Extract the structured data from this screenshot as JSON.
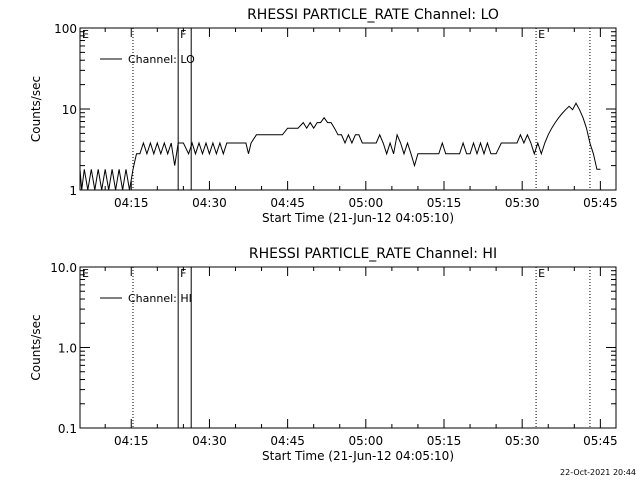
{
  "footer": {
    "timestamp": "22-Oct-2021 20:44"
  },
  "chart_data": [
    {
      "type": "line",
      "title": "RHESSI PARTICLE_RATE Channel: LO",
      "xlabel": "Start Time (21-Jun-12 04:05:10)",
      "ylabel": "Counts/sec",
      "yscale": "log",
      "ylim": [
        1,
        100
      ],
      "xlim": [
        "04:05:10",
        "05:48:00"
      ],
      "x_ticks": [
        "04:15",
        "04:30",
        "04:45",
        "05:00",
        "05:15",
        "05:30",
        "05:45"
      ],
      "y_ticks": [
        "1",
        "10",
        "100"
      ],
      "grid": false,
      "legend": {
        "position": "top-left",
        "entries": [
          "Channel: LO"
        ]
      },
      "markers": [
        {
          "label": "E",
          "time": "04:05:10",
          "style": "dotted"
        },
        {
          "label": "",
          "time": "04:15:20",
          "style": "dotted"
        },
        {
          "label": "F",
          "time": "04:24:00",
          "style": "solid"
        },
        {
          "label": "",
          "time": "04:26:30",
          "style": "solid"
        },
        {
          "label": "E",
          "time": "05:32:40",
          "style": "dotted"
        },
        {
          "label": "",
          "time": "05:43:00",
          "style": "dotted"
        }
      ],
      "series": [
        {
          "name": "Channel: LO",
          "points": [
            [
              "04:05:10",
              1.8
            ],
            [
              "04:05:30",
              1.0
            ],
            [
              "04:06:00",
              1.8
            ],
            [
              "04:06:40",
              1.0
            ],
            [
              "04:07:20",
              1.8
            ],
            [
              "04:08:00",
              1.0
            ],
            [
              "04:08:40",
              1.8
            ],
            [
              "04:09:20",
              1.0
            ],
            [
              "04:10:00",
              1.8
            ],
            [
              "04:10:40",
              1.0
            ],
            [
              "04:11:20",
              1.8
            ],
            [
              "04:12:00",
              1.0
            ],
            [
              "04:12:40",
              1.8
            ],
            [
              "04:13:20",
              1.0
            ],
            [
              "04:14:00",
              1.8
            ],
            [
              "04:14:40",
              1.0
            ],
            [
              "04:15:20",
              1.8
            ],
            [
              "04:16:00",
              2.8
            ],
            [
              "04:16:40",
              2.8
            ],
            [
              "04:17:20",
              3.8
            ],
            [
              "04:18:00",
              2.8
            ],
            [
              "04:18:40",
              3.8
            ],
            [
              "04:19:20",
              2.8
            ],
            [
              "04:20:00",
              3.8
            ],
            [
              "04:20:40",
              2.8
            ],
            [
              "04:21:20",
              3.8
            ],
            [
              "04:22:00",
              2.8
            ],
            [
              "04:22:40",
              3.8
            ],
            [
              "04:23:20",
              2.0
            ],
            [
              "04:24:00",
              3.8
            ],
            [
              "04:25:00",
              3.8
            ],
            [
              "04:26:00",
              2.8
            ],
            [
              "04:26:40",
              3.8
            ],
            [
              "04:27:20",
              2.8
            ],
            [
              "04:28:00",
              3.8
            ],
            [
              "04:28:40",
              2.8
            ],
            [
              "04:29:20",
              3.8
            ],
            [
              "04:30:00",
              2.8
            ],
            [
              "04:30:40",
              3.8
            ],
            [
              "04:31:20",
              2.8
            ],
            [
              "04:32:00",
              3.8
            ],
            [
              "04:32:40",
              2.8
            ],
            [
              "04:33:20",
              3.8
            ],
            [
              "04:34:00",
              3.8
            ],
            [
              "04:35:00",
              3.8
            ],
            [
              "04:36:00",
              3.8
            ],
            [
              "04:37:00",
              3.8
            ],
            [
              "04:37:30",
              2.8
            ],
            [
              "04:38:00",
              3.8
            ],
            [
              "04:39:00",
              4.8
            ],
            [
              "04:41:00",
              4.8
            ],
            [
              "04:43:00",
              4.8
            ],
            [
              "04:44:00",
              4.8
            ],
            [
              "04:45:00",
              5.8
            ],
            [
              "04:46:00",
              5.8
            ],
            [
              "04:47:00",
              5.8
            ],
            [
              "04:48:00",
              6.8
            ],
            [
              "04:48:40",
              5.8
            ],
            [
              "04:49:20",
              6.8
            ],
            [
              "04:50:00",
              5.8
            ],
            [
              "04:50:40",
              6.8
            ],
            [
              "04:51:20",
              6.8
            ],
            [
              "04:52:00",
              7.8
            ],
            [
              "04:52:40",
              6.8
            ],
            [
              "04:53:20",
              6.8
            ],
            [
              "04:54:00",
              5.8
            ],
            [
              "04:54:40",
              4.8
            ],
            [
              "04:55:20",
              4.8
            ],
            [
              "04:56:00",
              3.8
            ],
            [
              "04:56:40",
              4.8
            ],
            [
              "04:57:20",
              3.8
            ],
            [
              "04:58:00",
              4.8
            ],
            [
              "04:58:40",
              4.8
            ],
            [
              "04:59:20",
              3.8
            ],
            [
              "05:00:00",
              3.8
            ],
            [
              "05:01:00",
              3.8
            ],
            [
              "05:02:00",
              3.8
            ],
            [
              "05:02:40",
              4.8
            ],
            [
              "05:03:20",
              3.8
            ],
            [
              "05:04:00",
              2.8
            ],
            [
              "05:04:40",
              3.8
            ],
            [
              "05:05:20",
              2.8
            ],
            [
              "05:06:00",
              4.8
            ],
            [
              "05:06:40",
              3.8
            ],
            [
              "05:07:20",
              2.8
            ],
            [
              "05:08:00",
              3.8
            ],
            [
              "05:08:40",
              2.8
            ],
            [
              "05:09:20",
              2.0
            ],
            [
              "05:10:00",
              2.8
            ],
            [
              "05:11:00",
              2.8
            ],
            [
              "05:12:00",
              2.8
            ],
            [
              "05:13:00",
              2.8
            ],
            [
              "05:14:00",
              2.8
            ],
            [
              "05:14:40",
              3.8
            ],
            [
              "05:15:20",
              2.8
            ],
            [
              "05:16:00",
              2.8
            ],
            [
              "05:17:00",
              2.8
            ],
            [
              "05:18:00",
              2.8
            ],
            [
              "05:18:40",
              3.8
            ],
            [
              "05:19:20",
              2.8
            ],
            [
              "05:20:00",
              2.8
            ],
            [
              "05:20:40",
              3.8
            ],
            [
              "05:21:20",
              2.8
            ],
            [
              "05:22:00",
              3.8
            ],
            [
              "05:22:40",
              2.8
            ],
            [
              "05:23:20",
              3.8
            ],
            [
              "05:24:00",
              2.8
            ],
            [
              "05:25:00",
              2.8
            ],
            [
              "05:26:00",
              3.8
            ],
            [
              "05:27:00",
              3.8
            ],
            [
              "05:28:00",
              3.8
            ],
            [
              "05:29:00",
              3.8
            ],
            [
              "05:29:40",
              4.8
            ],
            [
              "05:30:20",
              3.8
            ],
            [
              "05:31:00",
              4.8
            ],
            [
              "05:31:40",
              3.8
            ],
            [
              "05:32:20",
              2.8
            ],
            [
              "05:33:00",
              3.8
            ],
            [
              "05:33:40",
              2.8
            ],
            [
              "05:34:20",
              3.8
            ],
            [
              "05:35:00",
              4.8
            ],
            [
              "05:35:40",
              5.8
            ],
            [
              "05:36:20",
              6.8
            ],
            [
              "05:37:00",
              7.8
            ],
            [
              "05:37:40",
              8.8
            ],
            [
              "05:38:20",
              9.8
            ],
            [
              "05:39:00",
              10.8
            ],
            [
              "05:39:40",
              9.8
            ],
            [
              "05:40:20",
              11.8
            ],
            [
              "05:41:00",
              9.8
            ],
            [
              "05:41:40",
              7.8
            ],
            [
              "05:42:20",
              5.8
            ],
            [
              "05:43:00",
              3.8
            ],
            [
              "05:43:40",
              2.8
            ],
            [
              "05:44:20",
              1.8
            ],
            [
              "05:45:00",
              1.8
            ]
          ]
        }
      ]
    },
    {
      "type": "line",
      "title": "RHESSI PARTICLE_RATE Channel: HI",
      "xlabel": "Start Time (21-Jun-12 04:05:10)",
      "ylabel": "Counts/sec",
      "yscale": "log",
      "ylim": [
        0.1,
        10
      ],
      "xlim": [
        "04:05:10",
        "05:48:00"
      ],
      "x_ticks": [
        "04:15",
        "04:30",
        "04:45",
        "05:00",
        "05:15",
        "05:30",
        "05:45"
      ],
      "y_ticks": [
        "0.1",
        "1.0",
        "10.0"
      ],
      "grid": false,
      "legend": {
        "position": "top-left",
        "entries": [
          "Channel: HI"
        ]
      },
      "markers": [
        {
          "label": "E",
          "time": "04:05:10",
          "style": "dotted"
        },
        {
          "label": "",
          "time": "04:15:20",
          "style": "dotted"
        },
        {
          "label": "F",
          "time": "04:24:00",
          "style": "solid"
        },
        {
          "label": "",
          "time": "04:26:30",
          "style": "solid"
        },
        {
          "label": "E",
          "time": "05:32:40",
          "style": "dotted"
        },
        {
          "label": "",
          "time": "05:43:00",
          "style": "dotted"
        }
      ],
      "series": [
        {
          "name": "Channel: HI",
          "points": []
        }
      ]
    }
  ]
}
